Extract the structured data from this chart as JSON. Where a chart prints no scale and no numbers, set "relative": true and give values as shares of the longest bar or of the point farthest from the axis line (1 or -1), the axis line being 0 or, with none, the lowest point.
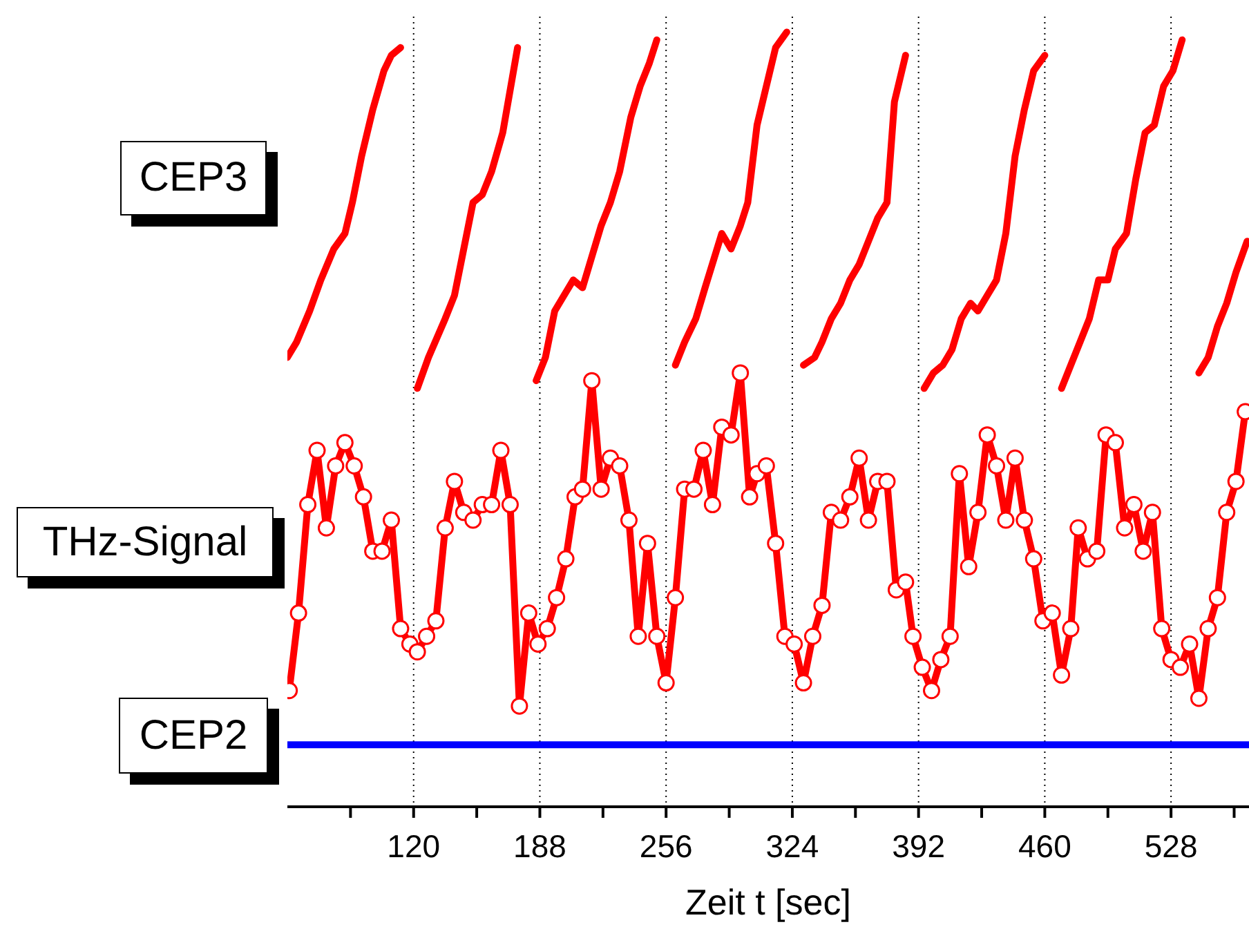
{
  "chart_data": {
    "type": "line",
    "relative": true,
    "xlabel": "Zeit t [sec]",
    "xlim": [
      52,
      570
    ],
    "xticks": [
      {
        "value": 86,
        "label": null
      },
      120,
      {
        "value": 154,
        "label": null
      },
      188,
      {
        "value": 222,
        "label": null
      },
      256,
      {
        "value": 290,
        "label": null
      },
      324,
      {
        "value": 358,
        "label": null
      },
      392,
      {
        "value": 426,
        "label": null
      },
      460,
      {
        "value": 494,
        "label": null
      },
      528,
      {
        "value": 562,
        "label": null
      }
    ],
    "grid": "x",
    "line_style": "solid",
    "series": [
      {
        "name": "CEP3",
        "color": "#ff0000",
        "marker": "none",
        "x": [
          52,
          57,
          64,
          70,
          77,
          83,
          87,
          92,
          98,
          104,
          108,
          113,
          117,
          122,
          128,
          137,
          142,
          147,
          152,
          157,
          162,
          168,
          176,
          181,
          186,
          191,
          196,
          201,
          206,
          211,
          216,
          221,
          226,
          231,
          237,
          242,
          247,
          251,
          256,
          261,
          266,
          272,
          277,
          286,
          291,
          296,
          300,
          305,
          310,
          315,
          321,
          325,
          330,
          336,
          340,
          345,
          350,
          355,
          360,
          365,
          370,
          375,
          379,
          385,
          390,
          395,
          400,
          405,
          410,
          415,
          420,
          424,
          429,
          434,
          439,
          444,
          449,
          454,
          460,
          465,
          469,
          474,
          479,
          484,
          489,
          494,
          498,
          504,
          509,
          514,
          519,
          524,
          529,
          534,
          538,
          543,
          548,
          553,
          558,
          563,
          569
        ],
        "values": [
          0.58,
          0.6,
          0.64,
          0.68,
          0.72,
          0.74,
          0.78,
          0.84,
          0.9,
          0.95,
          0.97,
          0.98,
          null,
          0.54,
          0.58,
          0.63,
          0.66,
          0.72,
          0.78,
          0.79,
          0.82,
          0.87,
          0.98,
          null,
          0.55,
          0.58,
          0.64,
          0.66,
          0.68,
          0.67,
          0.71,
          0.75,
          0.78,
          0.82,
          0.89,
          0.93,
          0.96,
          0.99,
          null,
          0.57,
          0.6,
          0.63,
          0.67,
          0.74,
          0.72,
          0.75,
          0.78,
          0.88,
          0.93,
          0.98,
          1.0,
          null,
          0.57,
          0.58,
          0.6,
          0.63,
          0.65,
          0.68,
          0.7,
          0.73,
          0.76,
          0.78,
          0.91,
          0.97,
          null,
          0.54,
          0.56,
          0.57,
          0.59,
          0.63,
          0.65,
          0.64,
          0.66,
          0.68,
          0.74,
          0.84,
          0.9,
          0.95,
          0.97,
          null,
          0.54,
          0.57,
          0.6,
          0.63,
          0.68,
          0.68,
          0.72,
          0.74,
          0.81,
          0.87,
          0.88,
          0.93,
          0.95,
          0.99,
          null,
          0.56,
          0.58,
          0.62,
          0.65,
          0.69,
          0.73
        ]
      },
      {
        "name": "THz-Signal",
        "color": "#ff0000",
        "marker": "circle",
        "x": [
          53,
          58,
          63,
          68,
          73,
          78,
          83,
          88,
          93,
          98,
          103,
          108,
          113,
          118,
          122,
          127,
          132,
          137,
          142,
          147,
          152,
          157,
          162,
          167,
          172,
          177,
          182,
          187,
          192,
          197,
          202,
          207,
          211,
          216,
          221,
          226,
          231,
          236,
          241,
          246,
          251,
          256,
          261,
          266,
          271,
          276,
          281,
          286,
          291,
          296,
          301,
          305,
          310,
          315,
          320,
          325,
          330,
          335,
          340,
          345,
          350,
          355,
          360,
          365,
          370,
          375,
          380,
          385,
          389,
          394,
          399,
          404,
          409,
          414,
          419,
          424,
          429,
          434,
          439,
          444,
          449,
          454,
          459,
          464,
          469,
          474,
          478,
          483,
          488,
          493,
          498,
          503,
          508,
          513,
          518,
          523,
          528,
          533,
          538,
          543,
          548,
          553,
          558,
          563,
          568
        ],
        "values": [
          0.15,
          0.25,
          0.39,
          0.46,
          0.36,
          0.44,
          0.47,
          0.44,
          0.4,
          0.33,
          0.33,
          0.37,
          0.23,
          0.21,
          0.2,
          0.22,
          0.24,
          0.36,
          0.42,
          0.38,
          0.37,
          0.39,
          0.39,
          0.46,
          0.39,
          0.13,
          0.25,
          0.21,
          0.23,
          0.27,
          0.32,
          0.4,
          0.41,
          0.55,
          0.41,
          0.45,
          0.44,
          0.37,
          0.22,
          0.34,
          0.22,
          0.16,
          0.27,
          0.41,
          0.41,
          0.46,
          0.39,
          0.49,
          0.48,
          0.56,
          0.4,
          0.43,
          0.44,
          0.34,
          0.22,
          0.21,
          0.16,
          0.22,
          0.26,
          0.38,
          0.37,
          0.4,
          0.45,
          0.37,
          0.42,
          0.42,
          0.28,
          0.29,
          0.22,
          0.18,
          0.15,
          0.19,
          0.22,
          0.43,
          0.31,
          0.38,
          0.48,
          0.44,
          0.37,
          0.45,
          0.37,
          0.32,
          0.24,
          0.25,
          0.17,
          0.23,
          0.36,
          0.32,
          0.33,
          0.48,
          0.47,
          0.36,
          0.39,
          0.33,
          0.38,
          0.23,
          0.19,
          0.18,
          0.21,
          0.14,
          0.23,
          0.27,
          0.38,
          0.42,
          0.51
        ]
      },
      {
        "name": "CEP2",
        "color": "#0000ff",
        "marker": "none",
        "x": [
          52,
          80,
          110,
          140,
          170,
          200,
          230,
          260,
          290,
          320,
          350,
          380,
          410,
          440,
          470,
          500,
          530,
          570
        ],
        "values": [
          0.08,
          0.08,
          0.08,
          0.08,
          0.08,
          0.08,
          0.08,
          0.08,
          0.08,
          0.08,
          0.08,
          0.08,
          0.08,
          0.08,
          0.08,
          0.08,
          0.08,
          0.08
        ]
      }
    ]
  }
}
